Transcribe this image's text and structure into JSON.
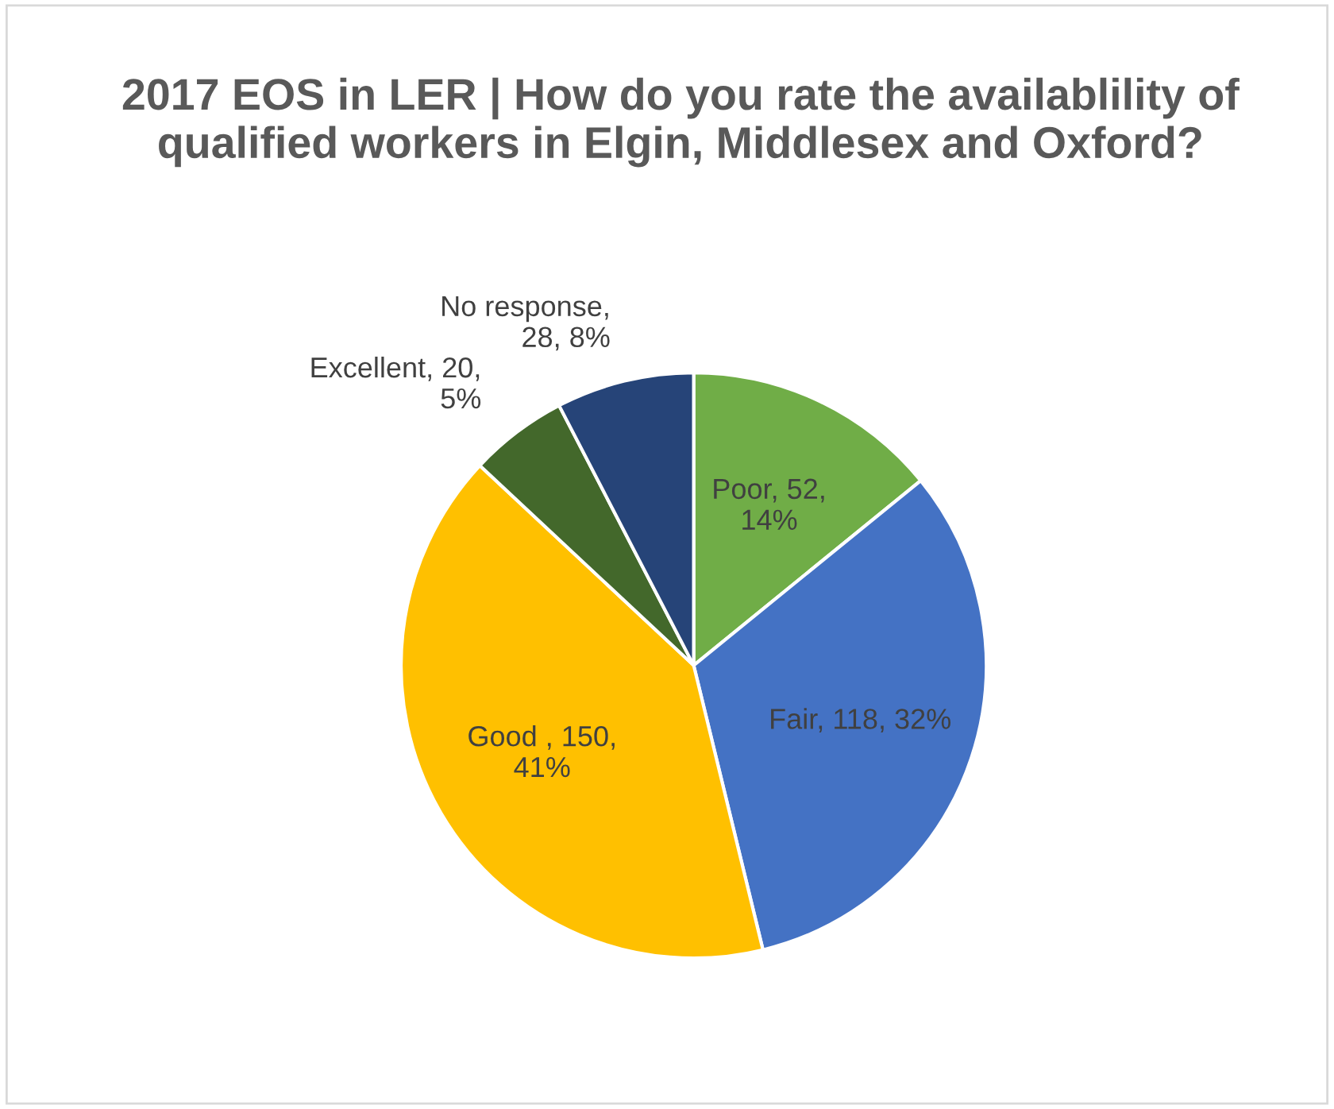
{
  "chart_data": {
    "type": "pie",
    "title": "2017 EOS in LER | How do you rate the availablility of qualified workers in Elgin, Middlesex and Oxford?",
    "categories": [
      null,
      null,
      null,
      null,
      null
    ],
    "values": [
      52,
      118,
      150,
      20,
      28
    ],
    "value_labels": [
      "Poor, 52,\n14%",
      "Fair, 118, 32%",
      "Good , 150,\n41%",
      "Excellent, 20,\n5%",
      "No response,\n28, 8%"
    ],
    "colors": [
      "#70ad47",
      "#4472c4",
      "#ffc000",
      "#43682b",
      "#264478"
    ],
    "legend": false
  }
}
